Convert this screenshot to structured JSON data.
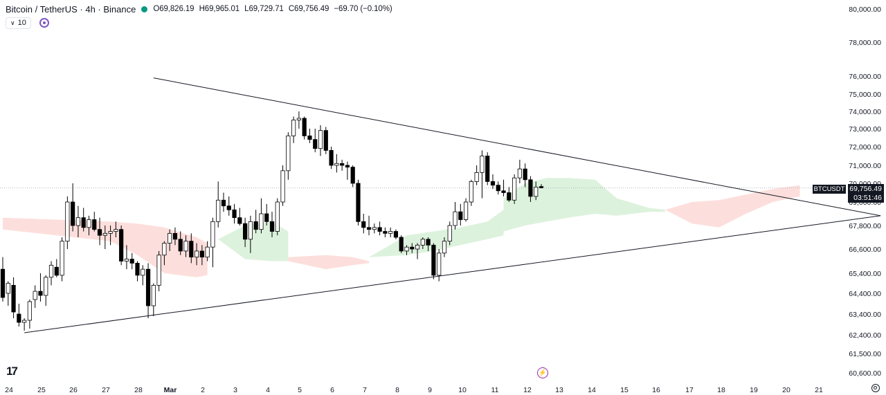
{
  "header": {
    "title": "Bitcoin / TetherUS · 4h · Binance",
    "open": "O69,826.19",
    "high": "H69,965.01",
    "low": "L69,729.71",
    "close": "C69,756.49",
    "change": "−69.70 (−0.10%)"
  },
  "indicator": {
    "label": "10"
  },
  "price_tag": {
    "symbol": "BTCUSDT",
    "price": "69,756.49",
    "countdown": "03:51:46"
  },
  "colors": {
    "up_candle": "#ffffff",
    "down_candle": "#000000",
    "cloud_bull": "#d7f0d7",
    "cloud_bear": "#fbd9d6",
    "trendline": "#131722"
  },
  "chart_data": {
    "type": "candlestick",
    "title": "",
    "x_tick_labels": [
      "24",
      "25",
      "26",
      "27",
      "28",
      "Mar",
      "2",
      "3",
      "4",
      "5",
      "6",
      "7",
      "8",
      "9",
      "10",
      "11",
      "12",
      "13",
      "14",
      "15",
      "16",
      "17",
      "18",
      "19",
      "20",
      "21"
    ],
    "y_tick_labels": [
      "80,000.00",
      "78,000.00",
      "76,000.00",
      "75,000.00",
      "74,000.00",
      "73,000.00",
      "72,000.00",
      "71,000.00",
      "70,000.00",
      "69,000.00",
      "67,800.00",
      "66,600.00",
      "65,400.00",
      "64,400.00",
      "63,400.00",
      "62,400.00",
      "61,500.00",
      "60,600.00"
    ],
    "y_ticks": [
      80000,
      78000,
      76000,
      75000,
      74000,
      73000,
      72000,
      71000,
      70000,
      69000,
      67800,
      66600,
      65400,
      64400,
      63400,
      62400,
      61500,
      60600
    ],
    "last_price": 69756.49,
    "candles": [
      {
        "o": 65600,
        "h": 66200,
        "l": 64000,
        "c": 64200
      },
      {
        "o": 64400,
        "h": 65000,
        "l": 63800,
        "c": 64900
      },
      {
        "o": 64800,
        "h": 65200,
        "l": 63200,
        "c": 63500
      },
      {
        "o": 63400,
        "h": 63900,
        "l": 62800,
        "c": 63000
      },
      {
        "o": 63000,
        "h": 63200,
        "l": 62600,
        "c": 63100
      },
      {
        "o": 63100,
        "h": 64100,
        "l": 62700,
        "c": 64000
      },
      {
        "o": 64100,
        "h": 64800,
        "l": 63700,
        "c": 64500
      },
      {
        "o": 64500,
        "h": 65400,
        "l": 64000,
        "c": 64300
      },
      {
        "o": 64300,
        "h": 65300,
        "l": 63800,
        "c": 65200
      },
      {
        "o": 65200,
        "h": 66000,
        "l": 64800,
        "c": 65800
      },
      {
        "o": 65700,
        "h": 66100,
        "l": 65200,
        "c": 65300
      },
      {
        "o": 65300,
        "h": 67200,
        "l": 65000,
        "c": 67000
      },
      {
        "o": 67000,
        "h": 69300,
        "l": 66600,
        "c": 69000
      },
      {
        "o": 69000,
        "h": 70000,
        "l": 67500,
        "c": 67800
      },
      {
        "o": 67800,
        "h": 68800,
        "l": 67200,
        "c": 68200
      },
      {
        "o": 68200,
        "h": 68700,
        "l": 67500,
        "c": 67700
      },
      {
        "o": 67700,
        "h": 68300,
        "l": 67300,
        "c": 68100
      },
      {
        "o": 68100,
        "h": 68500,
        "l": 67500,
        "c": 67600
      },
      {
        "o": 67600,
        "h": 68200,
        "l": 66800,
        "c": 67300
      },
      {
        "o": 67300,
        "h": 67800,
        "l": 66600,
        "c": 67400
      },
      {
        "o": 67400,
        "h": 67800,
        "l": 66800,
        "c": 67500
      },
      {
        "o": 67500,
        "h": 68000,
        "l": 67200,
        "c": 67600
      },
      {
        "o": 67600,
        "h": 67800,
        "l": 65800,
        "c": 66000
      },
      {
        "o": 66000,
        "h": 66800,
        "l": 65600,
        "c": 66100
      },
      {
        "o": 66100,
        "h": 66400,
        "l": 65600,
        "c": 65900
      },
      {
        "o": 65900,
        "h": 66000,
        "l": 65000,
        "c": 65300
      },
      {
        "o": 65300,
        "h": 65800,
        "l": 64800,
        "c": 65600
      },
      {
        "o": 65600,
        "h": 65900,
        "l": 63200,
        "c": 63800
      },
      {
        "o": 63800,
        "h": 64900,
        "l": 63300,
        "c": 64800
      },
      {
        "o": 64800,
        "h": 66500,
        "l": 64500,
        "c": 66300
      },
      {
        "o": 66300,
        "h": 67000,
        "l": 65800,
        "c": 66900
      },
      {
        "o": 66900,
        "h": 67600,
        "l": 66500,
        "c": 67400
      },
      {
        "o": 67400,
        "h": 67700,
        "l": 66800,
        "c": 67100
      },
      {
        "o": 67100,
        "h": 67500,
        "l": 66300,
        "c": 66500
      },
      {
        "o": 66500,
        "h": 67300,
        "l": 66200,
        "c": 67000
      },
      {
        "o": 67000,
        "h": 67400,
        "l": 65900,
        "c": 66200
      },
      {
        "o": 66200,
        "h": 66900,
        "l": 65800,
        "c": 66500
      },
      {
        "o": 66500,
        "h": 66800,
        "l": 65800,
        "c": 66200
      },
      {
        "o": 66200,
        "h": 67000,
        "l": 66000,
        "c": 66700
      },
      {
        "o": 66700,
        "h": 68200,
        "l": 65700,
        "c": 68000
      },
      {
        "o": 68000,
        "h": 70100,
        "l": 67700,
        "c": 69100
      },
      {
        "o": 69100,
        "h": 69500,
        "l": 68500,
        "c": 68800
      },
      {
        "o": 68800,
        "h": 69300,
        "l": 68300,
        "c": 68600
      },
      {
        "o": 68600,
        "h": 68900,
        "l": 67900,
        "c": 68200
      },
      {
        "o": 68200,
        "h": 68700,
        "l": 67800,
        "c": 67900
      },
      {
        "o": 67900,
        "h": 68200,
        "l": 66700,
        "c": 67100
      },
      {
        "o": 67100,
        "h": 68300,
        "l": 66400,
        "c": 68000
      },
      {
        "o": 68000,
        "h": 68600,
        "l": 67400,
        "c": 67600
      },
      {
        "o": 67600,
        "h": 69200,
        "l": 67400,
        "c": 68400
      },
      {
        "o": 68400,
        "h": 68900,
        "l": 67800,
        "c": 68000
      },
      {
        "o": 68000,
        "h": 68500,
        "l": 67200,
        "c": 67500
      },
      {
        "o": 67500,
        "h": 69200,
        "l": 67300,
        "c": 69000
      },
      {
        "o": 69000,
        "h": 71000,
        "l": 68800,
        "c": 70700
      },
      {
        "o": 70700,
        "h": 72800,
        "l": 70200,
        "c": 72600
      },
      {
        "o": 72600,
        "h": 73700,
        "l": 72200,
        "c": 73500
      },
      {
        "o": 73500,
        "h": 74000,
        "l": 73000,
        "c": 73600
      },
      {
        "o": 73600,
        "h": 73700,
        "l": 72400,
        "c": 72600
      },
      {
        "o": 72600,
        "h": 73000,
        "l": 72200,
        "c": 72400
      },
      {
        "o": 72400,
        "h": 73000,
        "l": 71700,
        "c": 71900
      },
      {
        "o": 71900,
        "h": 73200,
        "l": 71500,
        "c": 72900
      },
      {
        "o": 72900,
        "h": 73100,
        "l": 71600,
        "c": 71800
      },
      {
        "o": 71800,
        "h": 72000,
        "l": 70800,
        "c": 71000
      },
      {
        "o": 71000,
        "h": 71600,
        "l": 70600,
        "c": 71100
      },
      {
        "o": 71100,
        "h": 71300,
        "l": 70700,
        "c": 71000
      },
      {
        "o": 71000,
        "h": 71200,
        "l": 70200,
        "c": 70900
      },
      {
        "o": 70900,
        "h": 71000,
        "l": 69800,
        "c": 70000
      },
      {
        "o": 70000,
        "h": 70200,
        "l": 67800,
        "c": 68000
      },
      {
        "o": 68000,
        "h": 68400,
        "l": 67400,
        "c": 67700
      },
      {
        "o": 67700,
        "h": 68300,
        "l": 67300,
        "c": 67600
      },
      {
        "o": 67600,
        "h": 67900,
        "l": 67400,
        "c": 67700
      },
      {
        "o": 67700,
        "h": 68000,
        "l": 67300,
        "c": 67500
      },
      {
        "o": 67500,
        "h": 67700,
        "l": 67200,
        "c": 67400
      },
      {
        "o": 67400,
        "h": 67700,
        "l": 67200,
        "c": 67500
      },
      {
        "o": 67500,
        "h": 67600,
        "l": 67100,
        "c": 67200
      },
      {
        "o": 67200,
        "h": 67300,
        "l": 66400,
        "c": 66500
      },
      {
        "o": 66500,
        "h": 66800,
        "l": 66300,
        "c": 66700
      },
      {
        "o": 66700,
        "h": 66900,
        "l": 66400,
        "c": 66600
      },
      {
        "o": 66600,
        "h": 66900,
        "l": 66100,
        "c": 66800
      },
      {
        "o": 66800,
        "h": 67200,
        "l": 66600,
        "c": 67100
      },
      {
        "o": 67100,
        "h": 67200,
        "l": 66500,
        "c": 66800
      },
      {
        "o": 66800,
        "h": 66900,
        "l": 65100,
        "c": 65300
      },
      {
        "o": 65300,
        "h": 66600,
        "l": 65000,
        "c": 66400
      },
      {
        "o": 66400,
        "h": 67200,
        "l": 66200,
        "c": 67000
      },
      {
        "o": 67000,
        "h": 68000,
        "l": 66800,
        "c": 67800
      },
      {
        "o": 67800,
        "h": 69000,
        "l": 67600,
        "c": 68500
      },
      {
        "o": 68500,
        "h": 68900,
        "l": 67800,
        "c": 68100
      },
      {
        "o": 68100,
        "h": 69200,
        "l": 68000,
        "c": 69000
      },
      {
        "o": 69000,
        "h": 70200,
        "l": 68800,
        "c": 70100
      },
      {
        "o": 70100,
        "h": 71000,
        "l": 69900,
        "c": 70600
      },
      {
        "o": 70600,
        "h": 71800,
        "l": 69200,
        "c": 71500
      },
      {
        "o": 71500,
        "h": 71700,
        "l": 69900,
        "c": 70100
      },
      {
        "o": 70100,
        "h": 70500,
        "l": 69700,
        "c": 69900
      },
      {
        "o": 69900,
        "h": 70100,
        "l": 69400,
        "c": 69600
      },
      {
        "o": 69600,
        "h": 70200,
        "l": 69300,
        "c": 69500
      },
      {
        "o": 69500,
        "h": 69800,
        "l": 69000,
        "c": 69100
      },
      {
        "o": 69100,
        "h": 70500,
        "l": 68900,
        "c": 70300
      },
      {
        "o": 70300,
        "h": 71300,
        "l": 70000,
        "c": 70800
      },
      {
        "o": 70800,
        "h": 71100,
        "l": 69800,
        "c": 70200
      },
      {
        "o": 70200,
        "h": 70400,
        "l": 69000,
        "c": 69300
      },
      {
        "o": 69300,
        "h": 70100,
        "l": 69100,
        "c": 69800
      },
      {
        "o": 69830,
        "h": 69960,
        "l": 69730,
        "c": 69760
      }
    ],
    "trendlines": [
      {
        "name": "upper",
        "p1": {
          "bar": 28,
          "price": 75900
        },
        "p2": {
          "bar": 163,
          "price": 68300
        }
      },
      {
        "name": "lower",
        "p1": {
          "bar": 4,
          "price": 62500
        },
        "p2": {
          "bar": 163,
          "price": 68300
        }
      }
    ],
    "cloud_segments": [
      {
        "kind": "bear",
        "points": [
          [
            0,
            68200,
            67600
          ],
          [
            10,
            68100,
            67300
          ],
          [
            20,
            68000,
            67000
          ],
          [
            25,
            67900,
            66300
          ],
          [
            30,
            67700,
            65400
          ],
          [
            36,
            67200,
            65200
          ],
          [
            38,
            66900,
            65300
          ]
        ]
      },
      {
        "kind": "bull",
        "points": [
          [
            40,
            67100,
            67100
          ],
          [
            45,
            67800,
            66100
          ],
          [
            50,
            68000,
            66000
          ],
          [
            53,
            67500,
            66000
          ]
        ]
      },
      {
        "kind": "bear",
        "points": [
          [
            53,
            66200,
            66000
          ],
          [
            60,
            66300,
            65600
          ],
          [
            65,
            66200,
            65800
          ],
          [
            68,
            66000,
            65900
          ]
        ]
      },
      {
        "kind": "bull",
        "points": [
          [
            68,
            66200,
            66200
          ],
          [
            75,
            67300,
            66300
          ],
          [
            80,
            67500,
            66500
          ],
          [
            85,
            67700,
            66800
          ],
          [
            90,
            68000,
            67100
          ],
          [
            93,
            68600,
            67300
          ]
        ]
      },
      {
        "kind": "bull",
        "points": [
          [
            93,
            69200,
            67500
          ],
          [
            97,
            70000,
            67800
          ],
          [
            101,
            70300,
            68000
          ],
          [
            105,
            70300,
            68200
          ],
          [
            110,
            70200,
            68400
          ],
          [
            114,
            69200,
            68300
          ],
          [
            120,
            68700,
            68500
          ],
          [
            123,
            68600,
            68500
          ]
        ]
      },
      {
        "kind": "bear",
        "points": [
          [
            123,
            68600,
            68600
          ],
          [
            128,
            69000,
            67900
          ],
          [
            133,
            69100,
            67700
          ],
          [
            138,
            69400,
            68400
          ],
          [
            143,
            69700,
            69000
          ],
          [
            148,
            69900,
            69300
          ]
        ]
      }
    ]
  }
}
